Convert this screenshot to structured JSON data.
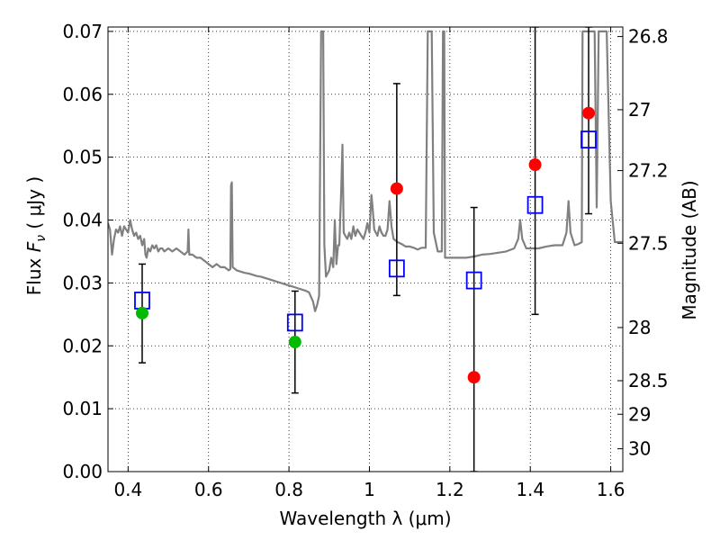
{
  "chart_data": {
    "type": "scatter",
    "xlabel": "Wavelength  λ (μm)",
    "ylabel_left": {
      "prefix": "Flux  ",
      "symbol": "F",
      "subscript": "ν",
      "suffix": "  ( μJy )"
    },
    "ylabel_right": "Magnitude (AB)",
    "xlim": [
      0.35,
      1.63
    ],
    "ylim": [
      0.0,
      0.0707
    ],
    "grid": true,
    "x_ticks": [
      {
        "value": 0.4,
        "label": "0.4"
      },
      {
        "value": 0.6,
        "label": "0.6"
      },
      {
        "value": 0.8,
        "label": "0.8"
      },
      {
        "value": 1.0,
        "label": "1"
      },
      {
        "value": 1.2,
        "label": "1.2"
      },
      {
        "value": 1.4,
        "label": "1.4"
      },
      {
        "value": 1.6,
        "label": "1.6"
      }
    ],
    "y_ticks": [
      {
        "value": 0.0,
        "label": "0.00"
      },
      {
        "value": 0.01,
        "label": "0.01"
      },
      {
        "value": 0.02,
        "label": "0.02"
      },
      {
        "value": 0.03,
        "label": "0.03"
      },
      {
        "value": 0.04,
        "label": "0.04"
      },
      {
        "value": 0.05,
        "label": "0.05"
      },
      {
        "value": 0.06,
        "label": "0.06"
      },
      {
        "value": 0.07,
        "label": "0.07"
      }
    ],
    "right_ticks": [
      {
        "label": "26.8",
        "mag": 26.8
      },
      {
        "label": "27",
        "mag": 27.0
      },
      {
        "label": "27.2",
        "mag": 27.2
      },
      {
        "label": "27.5",
        "mag": 27.5
      },
      {
        "label": "28",
        "mag": 28.0
      },
      {
        "label": "28.5",
        "mag": 28.5
      },
      {
        "label": "29",
        "mag": 29.0
      },
      {
        "label": "30",
        "mag": 30.0
      }
    ],
    "series": [
      {
        "kind": "model_spectrum",
        "color": "#808080",
        "points": [
          [
            0.35,
            0.0395
          ],
          [
            0.355,
            0.0385
          ],
          [
            0.36,
            0.0345
          ],
          [
            0.365,
            0.037
          ],
          [
            0.37,
            0.0385
          ],
          [
            0.375,
            0.038
          ],
          [
            0.38,
            0.039
          ],
          [
            0.385,
            0.0375
          ],
          [
            0.39,
            0.039
          ],
          [
            0.395,
            0.0385
          ],
          [
            0.4,
            0.038
          ],
          [
            0.405,
            0.04
          ],
          [
            0.41,
            0.0385
          ],
          [
            0.415,
            0.0375
          ],
          [
            0.42,
            0.038
          ],
          [
            0.425,
            0.037
          ],
          [
            0.43,
            0.0375
          ],
          [
            0.435,
            0.036
          ],
          [
            0.44,
            0.037
          ],
          [
            0.443,
            0.0345
          ],
          [
            0.446,
            0.034
          ],
          [
            0.45,
            0.0355
          ],
          [
            0.455,
            0.035
          ],
          [
            0.46,
            0.036
          ],
          [
            0.465,
            0.0355
          ],
          [
            0.47,
            0.036
          ],
          [
            0.475,
            0.035
          ],
          [
            0.48,
            0.0355
          ],
          [
            0.485,
            0.0355
          ],
          [
            0.49,
            0.035
          ],
          [
            0.5,
            0.0355
          ],
          [
            0.51,
            0.035
          ],
          [
            0.52,
            0.0355
          ],
          [
            0.53,
            0.035
          ],
          [
            0.54,
            0.0345
          ],
          [
            0.548,
            0.035
          ],
          [
            0.55,
            0.0385
          ],
          [
            0.552,
            0.0345
          ],
          [
            0.56,
            0.0345
          ],
          [
            0.57,
            0.034
          ],
          [
            0.58,
            0.034
          ],
          [
            0.59,
            0.0335
          ],
          [
            0.6,
            0.033
          ],
          [
            0.61,
            0.0325
          ],
          [
            0.62,
            0.033
          ],
          [
            0.63,
            0.0325
          ],
          [
            0.64,
            0.0325
          ],
          [
            0.65,
            0.032
          ],
          [
            0.654,
            0.0322
          ],
          [
            0.656,
            0.0455
          ],
          [
            0.658,
            0.046
          ],
          [
            0.66,
            0.0325
          ],
          [
            0.67,
            0.032
          ],
          [
            0.68,
            0.0318
          ],
          [
            0.69,
            0.0316
          ],
          [
            0.7,
            0.0315
          ],
          [
            0.71,
            0.0313
          ],
          [
            0.72,
            0.0311
          ],
          [
            0.73,
            0.031
          ],
          [
            0.74,
            0.0308
          ],
          [
            0.75,
            0.0306
          ],
          [
            0.76,
            0.0304
          ],
          [
            0.77,
            0.0302
          ],
          [
            0.78,
            0.03
          ],
          [
            0.79,
            0.0298
          ],
          [
            0.8,
            0.0296
          ],
          [
            0.81,
            0.0294
          ],
          [
            0.82,
            0.0292
          ],
          [
            0.83,
            0.029
          ],
          [
            0.84,
            0.0288
          ],
          [
            0.85,
            0.0285
          ],
          [
            0.86,
            0.027
          ],
          [
            0.865,
            0.0255
          ],
          [
            0.87,
            0.0265
          ],
          [
            0.875,
            0.028
          ],
          [
            0.88,
            0.07
          ],
          [
            0.885,
            0.07
          ],
          [
            0.888,
            0.036
          ],
          [
            0.892,
            0.031
          ],
          [
            0.9,
            0.032
          ],
          [
            0.905,
            0.034
          ],
          [
            0.91,
            0.0325
          ],
          [
            0.914,
            0.04
          ],
          [
            0.918,
            0.033
          ],
          [
            0.922,
            0.036
          ],
          [
            0.925,
            0.036
          ],
          [
            0.93,
            0.045
          ],
          [
            0.933,
            0.052
          ],
          [
            0.936,
            0.038
          ],
          [
            0.94,
            0.0375
          ],
          [
            0.945,
            0.037
          ],
          [
            0.95,
            0.038
          ],
          [
            0.955,
            0.037
          ],
          [
            0.96,
            0.039
          ],
          [
            0.965,
            0.0375
          ],
          [
            0.97,
            0.0385
          ],
          [
            0.975,
            0.038
          ],
          [
            0.98,
            0.0375
          ],
          [
            0.985,
            0.037
          ],
          [
            0.99,
            0.038
          ],
          [
            0.995,
            0.0395
          ],
          [
            1.0,
            0.038
          ],
          [
            1.005,
            0.044
          ],
          [
            1.008,
            0.042
          ],
          [
            1.012,
            0.0385
          ],
          [
            1.02,
            0.0375
          ],
          [
            1.025,
            0.039
          ],
          [
            1.03,
            0.038
          ],
          [
            1.035,
            0.0375
          ],
          [
            1.04,
            0.0375
          ],
          [
            1.045,
            0.0385
          ],
          [
            1.05,
            0.043
          ],
          [
            1.055,
            0.039
          ],
          [
            1.06,
            0.037
          ],
          [
            1.07,
            0.0365
          ],
          [
            1.08,
            0.0362
          ],
          [
            1.09,
            0.0358
          ],
          [
            1.1,
            0.0358
          ],
          [
            1.11,
            0.0356
          ],
          [
            1.12,
            0.0353
          ],
          [
            1.13,
            0.0356
          ],
          [
            1.14,
            0.0356
          ],
          [
            1.145,
            0.07
          ],
          [
            1.15,
            0.07
          ],
          [
            1.155,
            0.07
          ],
          [
            1.16,
            0.038
          ],
          [
            1.17,
            0.035
          ],
          [
            1.18,
            0.035
          ],
          [
            1.183,
            0.07
          ],
          [
            1.186,
            0.07
          ],
          [
            1.188,
            0.034
          ],
          [
            1.2,
            0.034
          ],
          [
            1.22,
            0.034
          ],
          [
            1.24,
            0.034
          ],
          [
            1.26,
            0.0342
          ],
          [
            1.28,
            0.0345
          ],
          [
            1.3,
            0.0346
          ],
          [
            1.32,
            0.0348
          ],
          [
            1.34,
            0.035
          ],
          [
            1.36,
            0.0355
          ],
          [
            1.37,
            0.037
          ],
          [
            1.375,
            0.04
          ],
          [
            1.38,
            0.037
          ],
          [
            1.39,
            0.0355
          ],
          [
            1.4,
            0.0355
          ],
          [
            1.42,
            0.0355
          ],
          [
            1.44,
            0.0358
          ],
          [
            1.46,
            0.036
          ],
          [
            1.48,
            0.036
          ],
          [
            1.49,
            0.038
          ],
          [
            1.495,
            0.043
          ],
          [
            1.5,
            0.038
          ],
          [
            1.51,
            0.036
          ],
          [
            1.52,
            0.0362
          ],
          [
            1.528,
            0.0365
          ],
          [
            1.53,
            0.07
          ],
          [
            1.54,
            0.07
          ],
          [
            1.55,
            0.07
          ],
          [
            1.56,
            0.07
          ],
          [
            1.565,
            0.042
          ],
          [
            1.57,
            0.07
          ],
          [
            1.58,
            0.07
          ],
          [
            1.59,
            0.07
          ],
          [
            1.6,
            0.043
          ],
          [
            1.61,
            0.0365
          ],
          [
            1.63,
            0.0365
          ]
        ]
      },
      {
        "kind": "model_photometry",
        "marker": "open_square",
        "color": "#0000ff",
        "points": [
          {
            "x": 0.435,
            "y": 0.0272
          },
          {
            "x": 0.815,
            "y": 0.0237
          },
          {
            "x": 1.068,
            "y": 0.0323
          },
          {
            "x": 1.26,
            "y": 0.0304
          },
          {
            "x": 1.412,
            "y": 0.0424
          },
          {
            "x": 1.545,
            "y": 0.0528
          }
        ]
      },
      {
        "kind": "detections",
        "marker": "filled_circle",
        "points": [
          {
            "x": 0.435,
            "y": 0.0252,
            "yerr_low": 0.0173,
            "yerr_high": 0.033,
            "color": "#00bb00"
          },
          {
            "x": 0.815,
            "y": 0.0206,
            "yerr_low": 0.0125,
            "yerr_high": 0.0287,
            "color": "#00bb00"
          },
          {
            "x": 1.068,
            "y": 0.045,
            "yerr_low": 0.028,
            "yerr_high": 0.0617,
            "color": "#ff0000"
          },
          {
            "x": 1.26,
            "y": 0.015,
            "yerr_low": 0.0,
            "yerr_high": 0.042,
            "color": "#ff0000"
          },
          {
            "x": 1.412,
            "y": 0.0488,
            "yerr_low": 0.025,
            "yerr_high": 0.0707,
            "color": "#ff0000"
          },
          {
            "x": 1.545,
            "y": 0.057,
            "yerr_low": 0.041,
            "yerr_high": 0.0707,
            "color": "#ff0000"
          }
        ]
      }
    ]
  }
}
